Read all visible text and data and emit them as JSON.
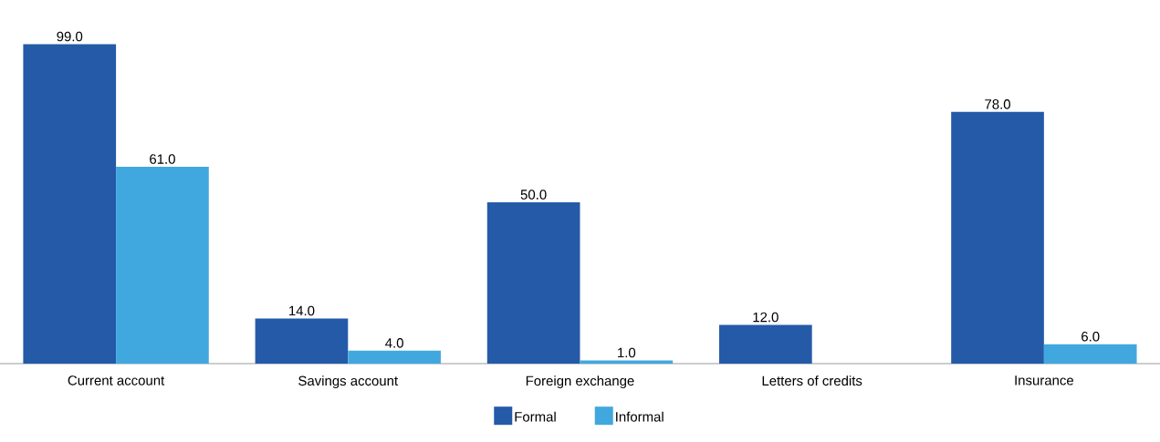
{
  "chart_data": {
    "type": "bar",
    "categories": [
      "Current account",
      "Savings account",
      "Foreign exchange",
      "Letters of credits",
      "Insurance"
    ],
    "series": [
      {
        "name": "Formal",
        "color": "#245aa8",
        "values": [
          99.0,
          14.0,
          50.0,
          12.0,
          78.0
        ],
        "value_labels": [
          "99.0",
          "14.0",
          "50.0",
          "12.0",
          "78.0"
        ]
      },
      {
        "name": "Informal",
        "color": "#41a8df",
        "values": [
          61.0,
          4.0,
          1.0,
          null,
          6.0
        ],
        "value_labels": [
          "61.0",
          "4.0",
          "1.0",
          null,
          "6.0"
        ]
      }
    ],
    "legend": "bottom"
  }
}
